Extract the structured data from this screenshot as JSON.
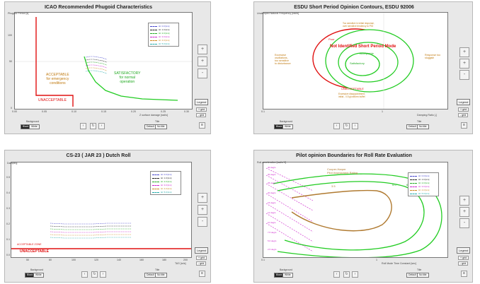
{
  "common": {
    "side_buttons": [
      "+",
      "+",
      "-"
    ],
    "legend_button": "Legend",
    "grid_buttons": [
      "+ grid",
      "- grid"
    ],
    "background_label": "Background",
    "background_options": [
      "Black",
      "White"
    ],
    "title_label": "Title",
    "title_options": [
      "Default",
      "No title"
    ],
    "nav_buttons": [
      "‹",
      "↻",
      "›"
    ]
  },
  "panel1": {
    "title": "ICAO Recommended Phugoid Characteristics",
    "ylabel": "Phugoid Period [s]",
    "xlabel": "Z surface damage [rad/s]",
    "yticks": [
      "100",
      "50",
      "0"
    ],
    "xticks": [
      "0.00",
      "0.05",
      "0.10",
      "0.15",
      "0.20",
      "0.25",
      "0.30"
    ],
    "acceptable": "ACCEPTABLE\nfor emergency\nconditions",
    "unacceptable": "UNACCEPTABLE",
    "satisfactory": "SATISFACTORY\nfor normal\noperation",
    "legend": [
      "Ht: 0.0 [km]",
      "Ht: 1.0 [km]",
      "Ht: 2.0 [km]",
      "Ht: 3.0 [km]",
      "Ht: 4.0 [km]",
      "Ht: 5.0 [km]"
    ],
    "colors": [
      "#4444cc",
      "#222222",
      "#22aa22",
      "#cc22cc",
      "#cc8822",
      "#22aaaa"
    ]
  },
  "panel2": {
    "title": "ESDU Short Period Opinion Contours, ESDU 92006",
    "ylabel": "Undamped Natural Frequency [rad/s]",
    "xlabel": "Damping Ratio [-]",
    "xticks": [
      "0.1",
      "1"
    ],
    "center": "Satisfactory",
    "red_label": "Not Identified Short Period Mode",
    "acceptable": "Acceptable",
    "unacceptable": "UNACCEPTABLE",
    "poor": "Poor",
    "left_note": "Excessive\noscillations,\ntoo sensitive\nto disturbance",
    "right_note": "Response too\nsluggish",
    "top_note": "Too sensitive in initial response,\nover sensitive tendency to PIO",
    "bottom_note": "Excessive disappointment,\ninitial - 0.5 g/uniform buffet"
  },
  "panel3": {
    "title": "CS-23 ( JAR 23 ) Dutch Roll",
    "ylabel": "Damping",
    "xlabel": "TAS [m/s]",
    "yticks": [
      "0.5",
      "0.4",
      "0.3",
      "0.2",
      "0.1",
      "0.0"
    ],
    "xticks": [
      "50",
      "60",
      "100",
      "120",
      "140",
      "160",
      "180",
      "200"
    ],
    "acceptable": "ACCEPTABLE ZONE",
    "unacceptable": "UNACCEPTABLE",
    "legend": [
      "Ht: 0.0 [km]",
      "Ht: 1.0 [km]",
      "Ht: 2.0 [km]",
      "Ht: 3.0 [km]",
      "Ht: 4.0 [km]",
      "Ht: 5.0 [km]"
    ],
    "colors": [
      "#4444cc",
      "#222222",
      "#22aa22",
      "#cc22cc",
      "#cc8822",
      "#22aaaa"
    ]
  },
  "panel4": {
    "title": "Pilot opinion Boundaries for Roll Rate Evaluation",
    "ylabel": "Roll acceleration [rad/s^2]",
    "xlabel": "Roll Mode Time Constant [sec]",
    "xticks": [
      "0.1",
      "1"
    ],
    "legend_title": "Cooper-Harper\nPilot Assessment Rating",
    "ratings": [
      "3.5",
      "5.0",
      "6.5"
    ],
    "deg_labels": [
      "40 deg/s",
      "30 deg/s",
      "25 deg/s",
      "20 deg/s",
      "15 deg/s",
      "12 deg/s",
      "10 deg/s",
      "7.5 deg/s",
      "5.0 deg/s",
      "2.5 deg/s"
    ],
    "legend": [
      "Ht: 0.0 [km]",
      "Ht: 1.0 [km]",
      "Ht: 2.0 [km]",
      "Ht: 3.0 [km]",
      "Ht: 4.0 [km]",
      "Ht: 5.0 [km]"
    ],
    "colors": [
      "#4444cc",
      "#222222",
      "#22aa22",
      "#cc22cc",
      "#cc8822",
      "#22aaaa"
    ]
  }
}
